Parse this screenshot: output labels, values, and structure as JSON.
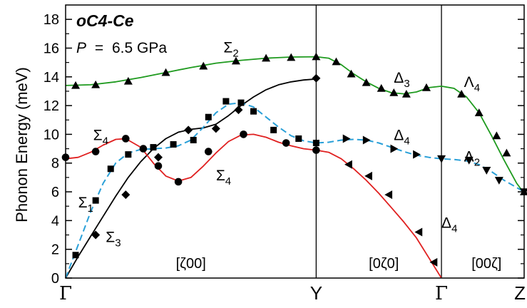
{
  "chart_data": {
    "type": "line",
    "title": "oC4-Ce",
    "pressure": {
      "var": "P",
      "eq": "=",
      "value": "6.5 GPa"
    },
    "ylabel": "Phonon Energy (meV)",
    "ylim": [
      0,
      19
    ],
    "yticks": [
      0,
      2,
      4,
      6,
      8,
      10,
      12,
      14,
      16,
      18
    ],
    "xlim": [
      0,
      1.83
    ],
    "xticks": [
      {
        "label": "Γ",
        "x": 0
      },
      {
        "label": "Y",
        "x": 1.0
      },
      {
        "label": "Γ",
        "x": 1.5
      },
      {
        "label": "Z",
        "x": 1.83
      }
    ],
    "segment_labels": [
      {
        "text": "[ζ00]",
        "x": 0.5,
        "y": 0.7
      },
      {
        "text": "[0ζ0]",
        "x": 1.27,
        "y": 0.7
      },
      {
        "text": "[00ζ]",
        "x": 1.68,
        "y": 0.7
      }
    ],
    "branch_labels": [
      {
        "sym": "Σ",
        "sub": "2",
        "x": 0.63,
        "y": 15.7
      },
      {
        "sym": "Δ",
        "sub": "3",
        "x": 1.31,
        "y": 13.6
      },
      {
        "sym": "Λ",
        "sub": "4",
        "x": 1.59,
        "y": 13.3
      },
      {
        "sym": "Σ",
        "sub": "4",
        "x": 0.11,
        "y": 9.6
      },
      {
        "sym": "Δ",
        "sub": "4",
        "x": 1.31,
        "y": 9.6
      },
      {
        "sym": "Λ",
        "sub": "2",
        "x": 1.59,
        "y": 8.1
      },
      {
        "sym": "Σ",
        "sub": "4",
        "x": 0.6,
        "y": 6.8
      },
      {
        "sym": "Σ",
        "sub": "1",
        "x": 0.05,
        "y": 4.9
      },
      {
        "sym": "Σ",
        "sub": "3",
        "x": 0.16,
        "y": 2.5
      },
      {
        "sym": "Δ",
        "sub": "4",
        "x": 1.5,
        "y": 3.5
      }
    ],
    "series": [
      {
        "marker": "triangle-up",
        "color": "#1e9a1e",
        "curve": [
          [
            0,
            13.4
          ],
          [
            0.1,
            13.45
          ],
          [
            0.2,
            13.65
          ],
          [
            0.3,
            13.95
          ],
          [
            0.4,
            14.3
          ],
          [
            0.5,
            14.65
          ],
          [
            0.6,
            14.95
          ],
          [
            0.7,
            15.15
          ],
          [
            0.8,
            15.3
          ],
          [
            0.9,
            15.38
          ],
          [
            1.0,
            15.4
          ],
          [
            1.05,
            15.3
          ],
          [
            1.1,
            14.85
          ],
          [
            1.15,
            14.2
          ],
          [
            1.2,
            13.65
          ],
          [
            1.25,
            13.2
          ],
          [
            1.3,
            12.9
          ],
          [
            1.35,
            12.82
          ],
          [
            1.4,
            12.95
          ],
          [
            1.45,
            13.25
          ],
          [
            1.5,
            13.35
          ],
          [
            1.55,
            13.2
          ],
          [
            1.6,
            12.6
          ],
          [
            1.65,
            11.5
          ],
          [
            1.7,
            9.9
          ],
          [
            1.75,
            8.2
          ],
          [
            1.8,
            6.6
          ],
          [
            1.83,
            5.9
          ]
        ],
        "points": [
          [
            0.04,
            13.4
          ],
          [
            0.12,
            13.45
          ],
          [
            0.25,
            13.7
          ],
          [
            0.4,
            14.3
          ],
          [
            0.55,
            14.75
          ],
          [
            0.68,
            15.1
          ],
          [
            0.8,
            15.3
          ],
          [
            0.9,
            15.35
          ],
          [
            1.0,
            15.4
          ],
          [
            1.08,
            15.05
          ],
          [
            1.14,
            14.2
          ],
          [
            1.2,
            13.6
          ],
          [
            1.26,
            13.2
          ],
          [
            1.31,
            12.9
          ],
          [
            1.36,
            12.8
          ],
          [
            1.44,
            13.25
          ],
          [
            1.58,
            12.8
          ],
          [
            1.65,
            11.5
          ],
          [
            1.72,
            9.9
          ],
          [
            1.76,
            8.7
          ],
          [
            1.83,
            6.0
          ]
        ]
      },
      {
        "marker": "diamond",
        "color": "#000000",
        "curve": [
          [
            0,
            0
          ],
          [
            0.05,
            1.5
          ],
          [
            0.1,
            2.9
          ],
          [
            0.15,
            4.3
          ],
          [
            0.2,
            5.7
          ],
          [
            0.25,
            7.0
          ],
          [
            0.3,
            8.1
          ],
          [
            0.35,
            9.0
          ],
          [
            0.4,
            9.7
          ],
          [
            0.45,
            10.15
          ],
          [
            0.5,
            10.35
          ],
          [
            0.55,
            10.45
          ],
          [
            0.6,
            10.7
          ],
          [
            0.65,
            11.3
          ],
          [
            0.7,
            12.0
          ],
          [
            0.75,
            12.6
          ],
          [
            0.8,
            13.1
          ],
          [
            0.85,
            13.45
          ],
          [
            0.9,
            13.65
          ],
          [
            0.95,
            13.78
          ],
          [
            1.0,
            13.85
          ]
        ],
        "points": [
          [
            0.12,
            3.0
          ],
          [
            0.24,
            5.8
          ],
          [
            0.37,
            8.4
          ],
          [
            0.49,
            10.3
          ],
          [
            0.6,
            10.4
          ],
          [
            0.69,
            11.7
          ],
          [
            1.0,
            13.9
          ]
        ]
      },
      {
        "marker": "circle",
        "color": "#e02020",
        "curve": [
          [
            0,
            8.3
          ],
          [
            0.05,
            8.4
          ],
          [
            0.1,
            8.75
          ],
          [
            0.15,
            9.25
          ],
          [
            0.2,
            9.65
          ],
          [
            0.24,
            9.7
          ],
          [
            0.3,
            9.1
          ],
          [
            0.35,
            8.0
          ],
          [
            0.4,
            7.1
          ],
          [
            0.45,
            6.75
          ],
          [
            0.5,
            7.0
          ],
          [
            0.55,
            7.8
          ],
          [
            0.6,
            8.7
          ],
          [
            0.65,
            9.5
          ],
          [
            0.7,
            9.95
          ],
          [
            0.75,
            10.0
          ],
          [
            0.8,
            9.8
          ],
          [
            0.85,
            9.45
          ],
          [
            0.9,
            9.2
          ],
          [
            0.95,
            9.0
          ],
          [
            1.0,
            8.9
          ],
          [
            1.05,
            8.75
          ],
          [
            1.1,
            8.3
          ],
          [
            1.15,
            7.6
          ],
          [
            1.2,
            6.8
          ],
          [
            1.25,
            5.9
          ],
          [
            1.3,
            4.9
          ],
          [
            1.35,
            3.9
          ],
          [
            1.4,
            2.8
          ],
          [
            1.45,
            1.4
          ],
          [
            1.5,
            0
          ]
        ],
        "points": [
          [
            0,
            8.4
          ],
          [
            0.12,
            8.8
          ],
          [
            0.24,
            9.7
          ],
          [
            0.31,
            9.0
          ],
          [
            0.37,
            7.8
          ],
          [
            0.45,
            6.7
          ],
          [
            0.57,
            8.8
          ],
          [
            0.71,
            10.0
          ],
          [
            0.88,
            9.4
          ],
          [
            1.0,
            8.9
          ]
        ]
      },
      {
        "marker": "triangle-left",
        "color": "#e02020",
        "points": [
          [
            1.13,
            7.9
          ],
          [
            1.21,
            7.1
          ],
          [
            1.29,
            5.8
          ],
          [
            1.41,
            3.2
          ],
          [
            1.47,
            1.1
          ]
        ]
      },
      {
        "marker": "square",
        "color": "#2aa0d8",
        "curve": [
          [
            0,
            0
          ],
          [
            0.05,
            2.3
          ],
          [
            0.1,
            4.6
          ],
          [
            0.15,
            6.6
          ],
          [
            0.2,
            8.0
          ],
          [
            0.25,
            8.7
          ],
          [
            0.3,
            8.95
          ],
          [
            0.35,
            9.0
          ],
          [
            0.4,
            9.05
          ],
          [
            0.45,
            9.2
          ],
          [
            0.5,
            9.6
          ],
          [
            0.55,
            10.5
          ],
          [
            0.6,
            11.5
          ],
          [
            0.65,
            12.1
          ],
          [
            0.7,
            12.2
          ],
          [
            0.75,
            11.9
          ],
          [
            0.8,
            11.2
          ],
          [
            0.85,
            10.5
          ],
          [
            0.9,
            9.9
          ],
          [
            0.95,
            9.55
          ],
          [
            1.0,
            9.4
          ],
          [
            1.05,
            9.45
          ],
          [
            1.1,
            9.6
          ],
          [
            1.15,
            9.65
          ],
          [
            1.2,
            9.6
          ],
          [
            1.25,
            9.4
          ],
          [
            1.3,
            9.1
          ],
          [
            1.35,
            8.8
          ],
          [
            1.4,
            8.55
          ],
          [
            1.45,
            8.4
          ],
          [
            1.5,
            8.3
          ],
          [
            1.55,
            8.25
          ],
          [
            1.6,
            8.15
          ],
          [
            1.65,
            7.9
          ],
          [
            1.7,
            7.4
          ],
          [
            1.75,
            6.8
          ],
          [
            1.8,
            6.3
          ],
          [
            1.83,
            6.0
          ]
        ],
        "points": [
          [
            0.04,
            1.6
          ],
          [
            0.12,
            5.4
          ],
          [
            0.18,
            7.6
          ],
          [
            0.25,
            8.6
          ],
          [
            0.35,
            9.1
          ],
          [
            0.43,
            9.3
          ],
          [
            0.51,
            9.6
          ],
          [
            0.57,
            11.2
          ],
          [
            0.64,
            12.3
          ],
          [
            0.7,
            12.2
          ],
          [
            0.75,
            11.6
          ],
          [
            0.83,
            10.3
          ],
          [
            0.93,
            9.7
          ],
          [
            1.0,
            9.4
          ]
        ]
      },
      {
        "marker": "triangle-right",
        "color": "#2aa0d8",
        "points": [
          [
            1.12,
            9.7
          ],
          [
            1.2,
            9.6
          ],
          [
            1.31,
            9.0
          ],
          [
            1.4,
            8.6
          ]
        ]
      },
      {
        "marker": "triangle-down",
        "color": "#2aa0d8",
        "points": [
          [
            1.5,
            8.3
          ],
          [
            1.61,
            8.2
          ],
          [
            1.68,
            7.5
          ],
          [
            1.73,
            6.8
          ],
          [
            1.83,
            6.0
          ]
        ]
      }
    ]
  }
}
